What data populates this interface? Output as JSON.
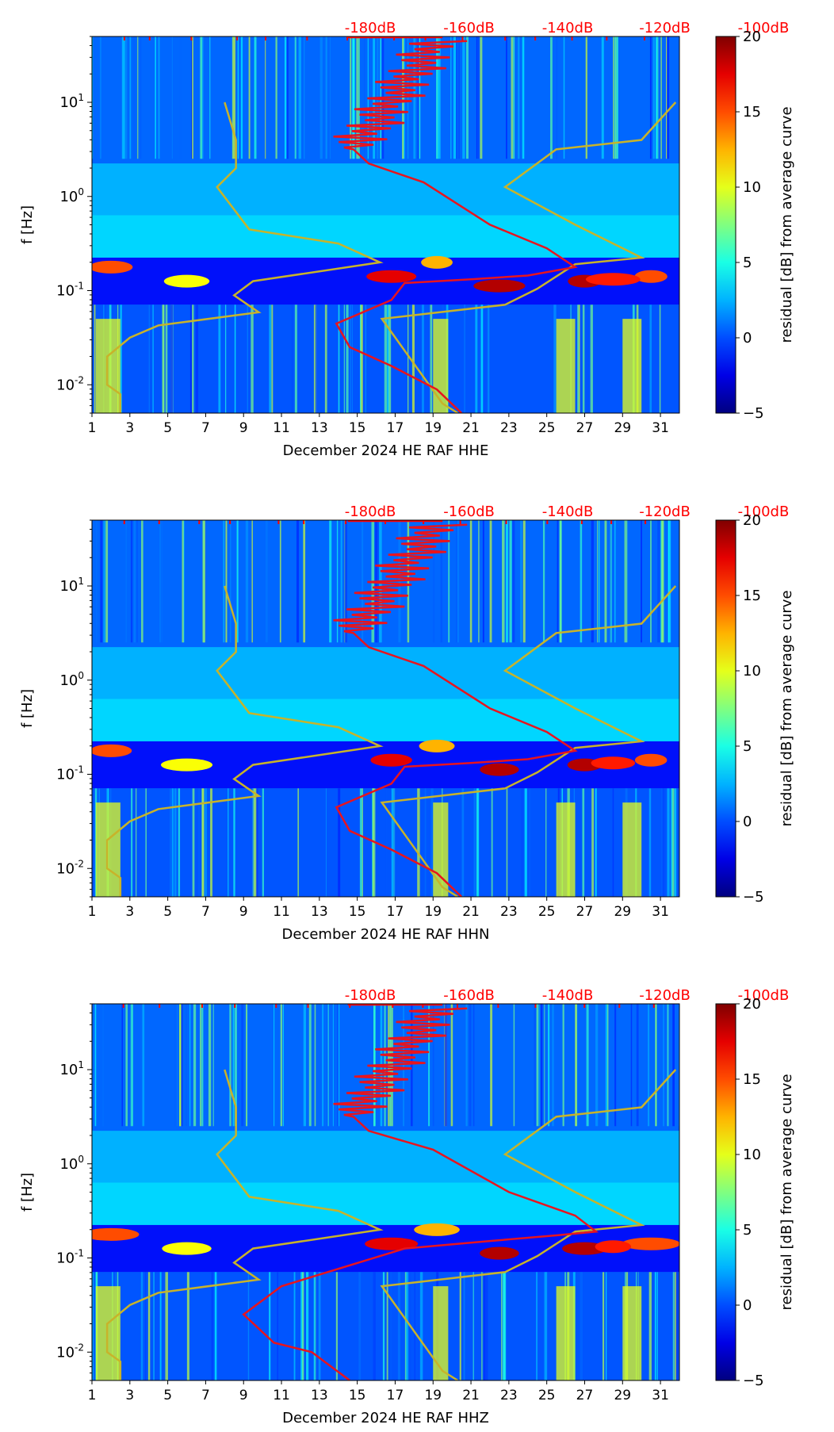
{
  "chart_data": [
    {
      "type": "heatmap",
      "title": "",
      "xlabel": "December 2024 HE RAF  HHE",
      "ylabel": "f [Hz]",
      "x_ticks": [
        "1",
        "3",
        "5",
        "7",
        "9",
        "11",
        "13",
        "15",
        "17",
        "19",
        "21",
        "23",
        "25",
        "27",
        "29",
        "31"
      ],
      "y_scale": "log",
      "y_ticks": [
        "10^-2",
        "10^-1",
        "10^0",
        "10^1"
      ],
      "ylim": [
        0.005,
        50
      ],
      "xlim": [
        1,
        32
      ],
      "top_labels": [
        "-180dB",
        "-160dB",
        "-140dB",
        "-120dB",
        "-100dB"
      ],
      "top_label_color": "#ff0000",
      "colorbar": {
        "label": "residual [dB] from average curve",
        "ticks": [
          "20",
          "15",
          "10",
          "5",
          "0",
          "−5"
        ],
        "range": [
          -5,
          20
        ],
        "colormap": "jet"
      },
      "model_curves": {
        "color": "#c8b32a"
      },
      "psd_curve": {
        "color": "#e8141e"
      }
    },
    {
      "type": "heatmap",
      "title": "",
      "xlabel": "December 2024 HE RAF  HHN",
      "ylabel": "f [Hz]",
      "x_ticks": [
        "1",
        "3",
        "5",
        "7",
        "9",
        "11",
        "13",
        "15",
        "17",
        "19",
        "21",
        "23",
        "25",
        "27",
        "29",
        "31"
      ],
      "y_scale": "log",
      "y_ticks": [
        "10^-2",
        "10^-1",
        "10^0",
        "10^1"
      ],
      "ylim": [
        0.005,
        50
      ],
      "xlim": [
        1,
        32
      ],
      "top_labels": [
        "-180dB",
        "-160dB",
        "-140dB",
        "-120dB",
        "-100dB"
      ],
      "top_label_color": "#ff0000",
      "colorbar": {
        "label": "residual [dB] from average curve",
        "ticks": [
          "20",
          "15",
          "10",
          "5",
          "0",
          "−5"
        ],
        "range": [
          -5,
          20
        ],
        "colormap": "jet"
      },
      "model_curves": {
        "color": "#c8b32a"
      },
      "psd_curve": {
        "color": "#e8141e"
      }
    },
    {
      "type": "heatmap",
      "title": "",
      "xlabel": "December 2024 HE RAF  HHZ",
      "ylabel": "f [Hz]",
      "x_ticks": [
        "1",
        "3",
        "5",
        "7",
        "9",
        "11",
        "13",
        "15",
        "17",
        "19",
        "21",
        "23",
        "25",
        "27",
        "29",
        "31"
      ],
      "y_scale": "log",
      "y_ticks": [
        "10^-2",
        "10^-1",
        "10^0",
        "10^1"
      ],
      "ylim": [
        0.005,
        50
      ],
      "xlim": [
        1,
        32
      ],
      "top_labels": [
        "-180dB",
        "-160dB",
        "-140dB",
        "-120dB",
        "-100dB"
      ],
      "top_label_color": "#ff0000",
      "colorbar": {
        "label": "residual [dB] from average curve",
        "ticks": [
          "20",
          "15",
          "10",
          "5",
          "0",
          "−5"
        ],
        "range": [
          -5,
          20
        ],
        "colormap": "jet"
      },
      "model_curves": {
        "color": "#c8b32a"
      },
      "psd_curve": {
        "color": "#e8141e"
      }
    }
  ]
}
